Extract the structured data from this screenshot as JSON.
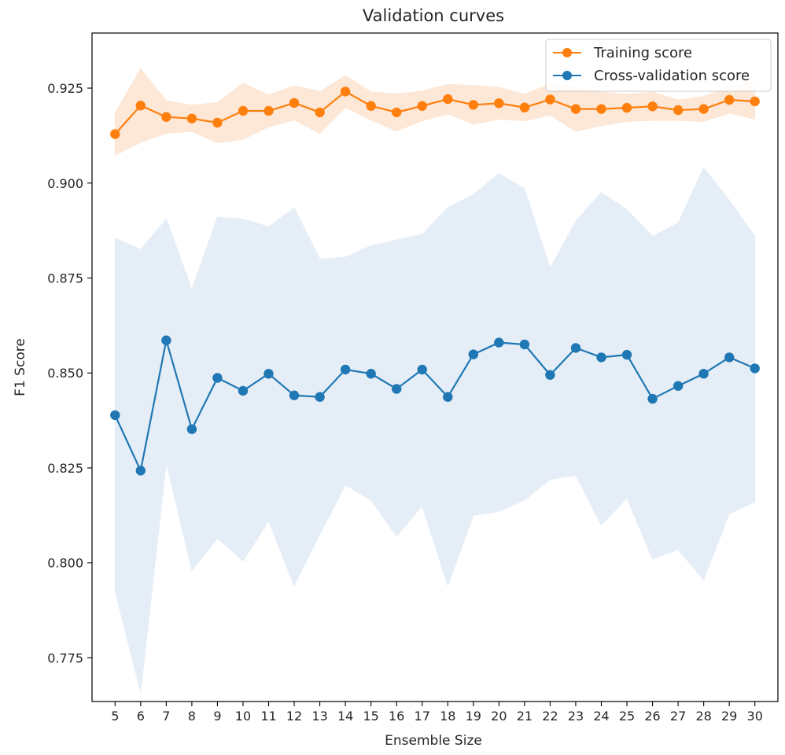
{
  "chart_data": {
    "type": "line",
    "title": "Validation curves",
    "xlabel": "Ensemble Size",
    "ylabel": "F1 Score",
    "x": [
      5,
      6,
      7,
      8,
      9,
      10,
      11,
      12,
      13,
      14,
      15,
      16,
      17,
      18,
      19,
      20,
      21,
      22,
      23,
      24,
      25,
      26,
      27,
      28,
      29,
      30
    ],
    "xlim": [
      4.1,
      30.9
    ],
    "ylim": [
      0.7635,
      0.9395
    ],
    "yticks": [
      0.775,
      0.8,
      0.825,
      0.85,
      0.875,
      0.9,
      0.925
    ],
    "ytick_labels": [
      "0.775",
      "0.800",
      "0.825",
      "0.850",
      "0.875",
      "0.900",
      "0.925"
    ],
    "grid": false,
    "legend": "top-right",
    "series": [
      {
        "name": "Training score",
        "color": "#ff7f0e",
        "band_color": "#fde7d6",
        "mean": [
          0.9129,
          0.9204,
          0.9174,
          0.917,
          0.9159,
          0.919,
          0.919,
          0.9211,
          0.9186,
          0.9241,
          0.9203,
          0.9186,
          0.9203,
          0.9221,
          0.9206,
          0.921,
          0.9199,
          0.922,
          0.9195,
          0.9195,
          0.9198,
          0.9202,
          0.9192,
          0.9195,
          0.9219,
          0.9215
        ],
        "lower": [
          0.9073,
          0.9107,
          0.9131,
          0.9136,
          0.9106,
          0.9115,
          0.9148,
          0.9166,
          0.9131,
          0.9199,
          0.9166,
          0.9137,
          0.9164,
          0.9182,
          0.9155,
          0.9168,
          0.9164,
          0.9179,
          0.9136,
          0.9151,
          0.9162,
          0.9165,
          0.9165,
          0.9162,
          0.9184,
          0.9168
        ],
        "upper": [
          0.9184,
          0.9301,
          0.9217,
          0.9205,
          0.9212,
          0.9263,
          0.9232,
          0.9256,
          0.9241,
          0.9283,
          0.924,
          0.9235,
          0.9242,
          0.926,
          0.9257,
          0.9252,
          0.9234,
          0.9261,
          0.9254,
          0.9239,
          0.9234,
          0.9239,
          0.9219,
          0.9228,
          0.9254,
          0.9262
        ]
      },
      {
        "name": "Cross-validation score",
        "color": "#1f77b4",
        "band_color": "#e5eef7",
        "mean": [
          0.8389,
          0.8243,
          0.8586,
          0.8352,
          0.8487,
          0.8453,
          0.8498,
          0.8441,
          0.8437,
          0.8509,
          0.8498,
          0.8458,
          0.8509,
          0.8437,
          0.8549,
          0.858,
          0.8575,
          0.8495,
          0.8566,
          0.8541,
          0.8548,
          0.8432,
          0.8466,
          0.8498,
          0.8541,
          0.8512
        ],
        "lower": [
          0.7925,
          0.766,
          0.8265,
          0.798,
          0.8065,
          0.8005,
          0.811,
          0.794,
          0.8075,
          0.8205,
          0.8165,
          0.807,
          0.815,
          0.794,
          0.8125,
          0.8135,
          0.8165,
          0.822,
          0.823,
          0.81,
          0.817,
          0.801,
          0.8035,
          0.7955,
          0.813,
          0.816
        ],
        "upper": [
          0.8855,
          0.8825,
          0.8905,
          0.872,
          0.891,
          0.8905,
          0.8885,
          0.8935,
          0.88,
          0.8805,
          0.8835,
          0.885,
          0.8865,
          0.8935,
          0.897,
          0.9025,
          0.8985,
          0.8775,
          0.89,
          0.8975,
          0.893,
          0.886,
          0.8895,
          0.904,
          0.8955,
          0.886
        ]
      }
    ]
  }
}
